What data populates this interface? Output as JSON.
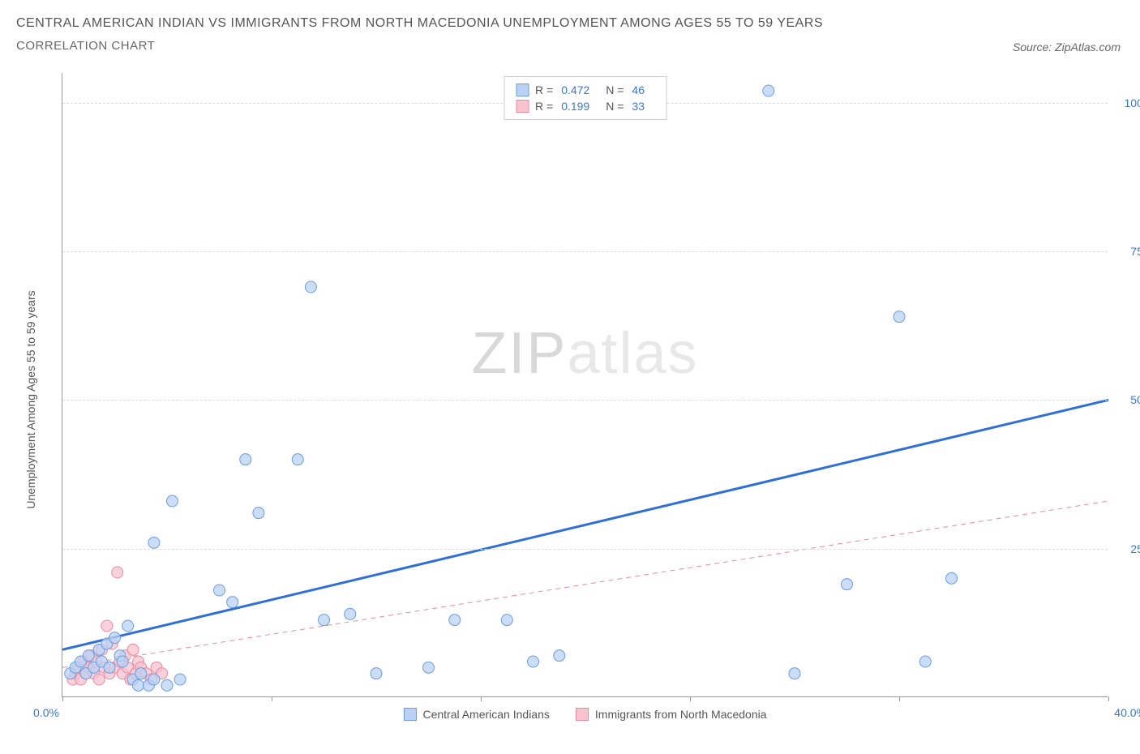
{
  "title": "CENTRAL AMERICAN INDIAN VS IMMIGRANTS FROM NORTH MACEDONIA UNEMPLOYMENT AMONG AGES 55 TO 59 YEARS",
  "subtitle": "CORRELATION CHART",
  "source": "Source: ZipAtlas.com",
  "watermark_a": "ZIP",
  "watermark_b": "atlas",
  "y_axis_label": "Unemployment Among Ages 55 to 59 years",
  "chart": {
    "type": "scatter",
    "xlim": [
      0,
      40
    ],
    "ylim": [
      0,
      105
    ],
    "x_ticks": [
      0,
      8,
      16,
      24,
      32,
      40
    ],
    "x_tick_labels": [
      "0.0%",
      "",
      "",
      "",
      "",
      "40.0%"
    ],
    "y_ticks": [
      25,
      50,
      75,
      100
    ],
    "y_tick_labels": [
      "25.0%",
      "50.0%",
      "75.0%",
      "100.0%"
    ],
    "background_color": "#ffffff",
    "grid_color": "#dddddd",
    "axis_color": "#999999",
    "tick_label_color": "#3478e5",
    "marker_radius": 7,
    "marker_stroke_width": 1,
    "series": [
      {
        "name": "Central American Indians",
        "fill": "#b9d1f4",
        "stroke": "#6b9de0",
        "fill_opacity": 0.75,
        "R": "0.472",
        "N": "46",
        "trend": {
          "x1": 0,
          "y1": 8,
          "x2": 40,
          "y2": 50,
          "stroke": "#2f6fd6",
          "width": 3,
          "dash": "none"
        },
        "points": [
          [
            0.3,
            4
          ],
          [
            0.5,
            5
          ],
          [
            0.7,
            6
          ],
          [
            0.9,
            4
          ],
          [
            1.0,
            7
          ],
          [
            1.2,
            5
          ],
          [
            1.4,
            8
          ],
          [
            1.5,
            6
          ],
          [
            1.7,
            9
          ],
          [
            1.8,
            5
          ],
          [
            2.0,
            10
          ],
          [
            2.2,
            7
          ],
          [
            2.3,
            6
          ],
          [
            2.5,
            12
          ],
          [
            2.7,
            3
          ],
          [
            2.9,
            2
          ],
          [
            3.0,
            4
          ],
          [
            3.3,
            2
          ],
          [
            3.5,
            3
          ],
          [
            4.0,
            2
          ],
          [
            4.2,
            33
          ],
          [
            3.5,
            26
          ],
          [
            4.5,
            3
          ],
          [
            6.0,
            18
          ],
          [
            6.5,
            16
          ],
          [
            7.0,
            40
          ],
          [
            7.5,
            31
          ],
          [
            9.0,
            40
          ],
          [
            9.5,
            69
          ],
          [
            10.0,
            13
          ],
          [
            11.0,
            14
          ],
          [
            12.0,
            4
          ],
          [
            14.0,
            5
          ],
          [
            15.0,
            13
          ],
          [
            17.0,
            13
          ],
          [
            18.0,
            6
          ],
          [
            19.0,
            7
          ],
          [
            27.0,
            102
          ],
          [
            28.0,
            4
          ],
          [
            30.0,
            19
          ],
          [
            32.0,
            64
          ],
          [
            33.0,
            6
          ],
          [
            34.0,
            20
          ]
        ]
      },
      {
        "name": "Immigrants from North Macedonia",
        "fill": "#f6c3cf",
        "stroke": "#e88aa0",
        "fill_opacity": 0.75,
        "R": "0.199",
        "N": "33",
        "trend": {
          "x1": 0,
          "y1": 5,
          "x2": 40,
          "y2": 33,
          "stroke": "#e88aa0",
          "width": 1,
          "dash": "6 5"
        },
        "points": [
          [
            0.4,
            3
          ],
          [
            0.5,
            4
          ],
          [
            0.6,
            5
          ],
          [
            0.7,
            3
          ],
          [
            0.8,
            6
          ],
          [
            0.9,
            4
          ],
          [
            1.0,
            5
          ],
          [
            1.1,
            7
          ],
          [
            1.2,
            4
          ],
          [
            1.3,
            6
          ],
          [
            1.4,
            3
          ],
          [
            1.5,
            8
          ],
          [
            1.6,
            5
          ],
          [
            1.7,
            12
          ],
          [
            1.8,
            4
          ],
          [
            1.9,
            9
          ],
          [
            2.0,
            5
          ],
          [
            2.1,
            21
          ],
          [
            2.2,
            6
          ],
          [
            2.3,
            4
          ],
          [
            2.4,
            7
          ],
          [
            2.5,
            5
          ],
          [
            2.6,
            3
          ],
          [
            2.7,
            8
          ],
          [
            2.8,
            4
          ],
          [
            2.9,
            6
          ],
          [
            3.0,
            5
          ],
          [
            3.2,
            4
          ],
          [
            3.4,
            3
          ],
          [
            3.6,
            5
          ],
          [
            3.8,
            4
          ]
        ]
      }
    ]
  },
  "legend_bottom": [
    {
      "label": "Central American Indians",
      "fill": "#b9d1f4",
      "stroke": "#6b9de0"
    },
    {
      "label": "Immigrants from North Macedonia",
      "fill": "#f6c3cf",
      "stroke": "#e88aa0"
    }
  ],
  "legend_top_labels": {
    "r": "R =",
    "n": "N ="
  }
}
